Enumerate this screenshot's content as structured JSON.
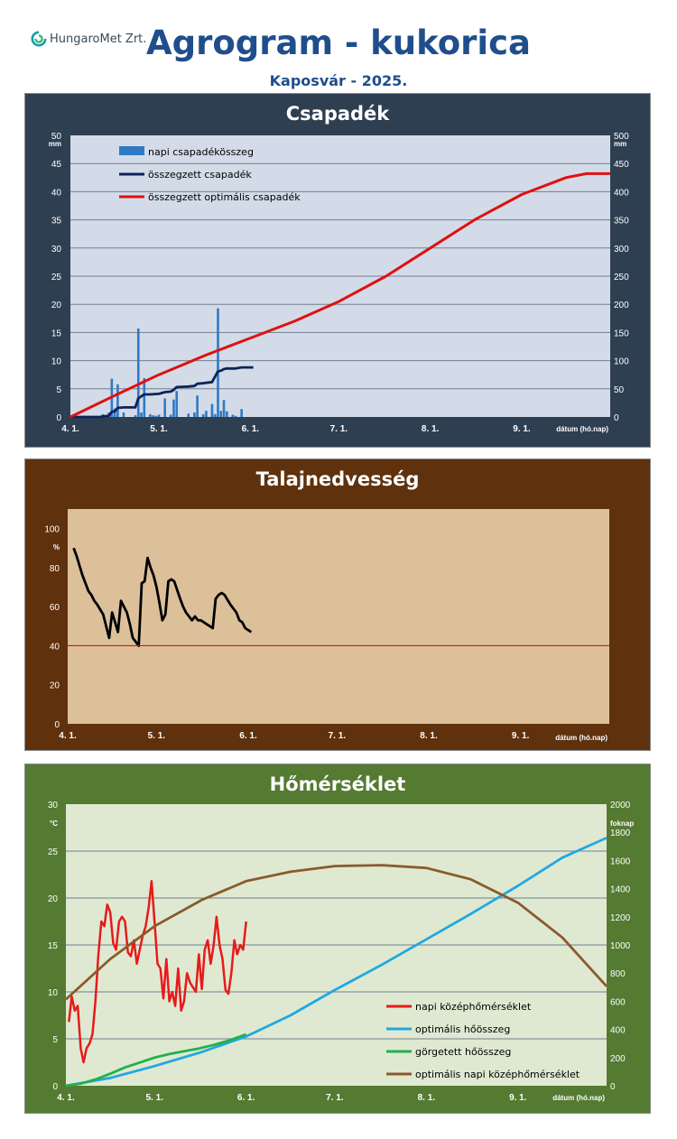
{
  "header": {
    "logo_text": "HungaroMet Zrt.",
    "title": "Agrogram - kukorica",
    "subtitle": "Kaposvár  - 2025."
  },
  "colors": {
    "panel1_bg": "#2f3f52",
    "panel2_bg": "#5f310d",
    "panel3_bg": "#557a32",
    "plot1_bg": "#d3dbe8",
    "plot2_bg": "#dcc09a",
    "plot3_bg": "#dfe9d2",
    "daily_precip": "#2e7ac6",
    "cum_precip": "#0d2357",
    "opt_precip": "#e01010",
    "soil": "#000000",
    "soil_threshold": "#e01010",
    "temp_daily": "#e81a1a",
    "opt_heatsum": "#22a8e0",
    "rolling_heatsum": "#22b04a",
    "opt_daily_temp": "#8b5a2b"
  },
  "chart_data": [
    {
      "type": "bar",
      "title": "Csapadék",
      "xlabel": "dátum (hó.nap)",
      "x_ticks": [
        "4. 1.",
        "5. 1.",
        "6. 1.",
        "7. 1.",
        "8. 1.",
        "9. 1."
      ],
      "x_tick_days": [
        0,
        30,
        61,
        91,
        122,
        153
      ],
      "xlim": [
        0,
        183
      ],
      "y_left": {
        "unit": "mm",
        "lim": [
          0,
          50
        ],
        "ticks": [
          0,
          5,
          10,
          15,
          20,
          25,
          30,
          35,
          40,
          45,
          50
        ]
      },
      "y_right": {
        "unit": "mm",
        "lim": [
          0,
          500
        ],
        "ticks": [
          0,
          50,
          100,
          150,
          200,
          250,
          300,
          350,
          400,
          450,
          500
        ]
      },
      "grid": true,
      "legend": "top-left",
      "series": [
        {
          "name": "napi csapadékösszeg",
          "kind": "bar",
          "axis": "left",
          "x": [
            11,
            13,
            14,
            15,
            16,
            18,
            22,
            23,
            24,
            25,
            27,
            28,
            29,
            30,
            32,
            34,
            35,
            36,
            40,
            42,
            43,
            45,
            46,
            48,
            49,
            50,
            51,
            52,
            53,
            55,
            56,
            58
          ],
          "values": [
            0.5,
            0.8,
            6.8,
            1.5,
            5.8,
            0.8,
            0.3,
            15.7,
            0.8,
            6.9,
            0.5,
            0.3,
            0.2,
            0.4,
            3.3,
            0.4,
            3.1,
            4.6,
            0.6,
            0.8,
            3.8,
            0.5,
            1.1,
            2.3,
            0.5,
            19.3,
            1.1,
            3.0,
            1.0,
            0.4,
            0.2,
            1.4
          ]
        },
        {
          "name": "összegzett csapadék",
          "kind": "line",
          "axis": "right",
          "x": [
            0,
            10,
            11,
            13,
            14,
            15,
            16,
            18,
            22,
            23,
            25,
            27,
            30,
            32,
            34,
            35,
            36,
            40,
            42,
            43,
            45,
            48,
            50,
            51,
            52,
            53,
            56,
            58,
            62
          ],
          "values": [
            0,
            0,
            1,
            2,
            9,
            10,
            16,
            17,
            17,
            33,
            40,
            40,
            41,
            44,
            45,
            48,
            53,
            54,
            55,
            59,
            60,
            62,
            81,
            82,
            85,
            86,
            86,
            88,
            88
          ]
        },
        {
          "name": "összegzett optimális csapadék",
          "kind": "line",
          "axis": "right",
          "x": [
            0,
            15,
            30,
            46,
            61,
            76,
            91,
            107,
            122,
            137,
            153,
            168,
            175,
            183
          ],
          "values": [
            0,
            38,
            75,
            110,
            140,
            170,
            205,
            250,
            300,
            350,
            395,
            425,
            432,
            432
          ]
        }
      ]
    },
    {
      "type": "line",
      "title": "Talajnedvesség",
      "xlabel": "dátum (hó.nap)",
      "x_ticks": [
        "4. 1.",
        "5. 1.",
        "6. 1.",
        "7. 1.",
        "8. 1.",
        "9. 1."
      ],
      "x_tick_days": [
        0,
        30,
        61,
        91,
        122,
        153
      ],
      "xlim": [
        0,
        183
      ],
      "y_left": {
        "unit": "%",
        "lim": [
          0,
          110
        ],
        "ticks": [
          0,
          20,
          40,
          60,
          80,
          100
        ]
      },
      "grid": false,
      "series": [
        {
          "name": "",
          "kind": "line",
          "x": [
            2,
            3,
            5,
            7,
            8,
            9,
            10,
            12,
            13,
            14,
            15,
            16,
            17,
            18,
            20,
            21,
            22,
            23,
            24,
            25,
            26,
            27,
            28,
            29,
            30,
            31,
            32,
            33,
            34,
            35,
            36,
            38,
            39,
            40,
            42,
            43,
            44,
            45,
            46,
            47,
            48,
            49,
            50,
            51,
            52,
            53,
            55,
            56,
            57,
            58,
            59,
            60,
            62
          ],
          "values": [
            90,
            86,
            76,
            68,
            66,
            63,
            61,
            56,
            50,
            44,
            57,
            52,
            47,
            63,
            57,
            51,
            44,
            42,
            40,
            72,
            73,
            85,
            80,
            76,
            70,
            62,
            53,
            56,
            73,
            74,
            73,
            64,
            60,
            57,
            53,
            55,
            53,
            53,
            52,
            51,
            50,
            49,
            64,
            66,
            67,
            66,
            61,
            59,
            57,
            53,
            52,
            49,
            47
          ]
        },
        {
          "name": "",
          "kind": "hline",
          "values": [
            40
          ]
        }
      ]
    },
    {
      "type": "line",
      "title": "Hőmérséklet",
      "xlabel": "dátum (hó.nap)",
      "x_ticks": [
        "4. 1.",
        "5. 1.",
        "6. 1.",
        "7. 1.",
        "8. 1.",
        "9. 1."
      ],
      "x_tick_days": [
        0,
        30,
        61,
        91,
        122,
        153
      ],
      "xlim": [
        0,
        183
      ],
      "y_left": {
        "unit": "°C",
        "lim": [
          0,
          30
        ],
        "ticks": [
          0,
          5,
          10,
          15,
          20,
          25,
          30
        ]
      },
      "y_right": {
        "unit": "foknap",
        "lim": [
          0,
          2000
        ],
        "ticks": [
          0,
          200,
          400,
          600,
          800,
          1000,
          1200,
          1400,
          1600,
          1800,
          2000
        ]
      },
      "grid": true,
      "legend": "bottom-right",
      "series": [
        {
          "name": "napi középhőmérséklet",
          "kind": "line",
          "axis": "left",
          "x": [
            1,
            2,
            3,
            4,
            5,
            6,
            7,
            8,
            9,
            10,
            11,
            12,
            13,
            14,
            15,
            16,
            17,
            18,
            19,
            20,
            21,
            22,
            23,
            24,
            25,
            26,
            27,
            28,
            29,
            30,
            31,
            32,
            33,
            34,
            35,
            36,
            37,
            38,
            39,
            40,
            41,
            42,
            43,
            44,
            45,
            46,
            47,
            48,
            49,
            50,
            51,
            52,
            53,
            54,
            55,
            56,
            57,
            58,
            59,
            60,
            61
          ],
          "values": [
            6.8,
            9.5,
            8.0,
            8.5,
            4.0,
            2.5,
            4.0,
            4.5,
            5.5,
            9.0,
            14.0,
            17.5,
            17.0,
            19.3,
            18.5,
            15.2,
            14.5,
            17.5,
            18.0,
            17.5,
            14.2,
            13.8,
            15.5,
            13.0,
            14.5,
            16.0,
            17.0,
            19.0,
            21.8,
            17.5,
            13.0,
            12.5,
            9.3,
            13.5,
            9.0,
            10.0,
            8.5,
            12.5,
            8.0,
            9.0,
            12.0,
            11.0,
            10.5,
            10.0,
            14.0,
            10.3,
            14.5,
            15.5,
            13.0,
            15.0,
            18.0,
            15.0,
            13.5,
            10.2,
            9.8,
            12.0,
            15.5,
            14.0,
            15.0,
            14.5,
            17.5
          ]
        },
        {
          "name": "optimális hőösszeg",
          "kind": "line",
          "axis": "right",
          "x": [
            0,
            15,
            30,
            46,
            61,
            76,
            91,
            107,
            122,
            137,
            153,
            168,
            183
          ],
          "values": [
            0,
            55,
            140,
            240,
            350,
            500,
            680,
            860,
            1040,
            1220,
            1420,
            1620,
            1760
          ]
        },
        {
          "name": "görgetett hőösszeg",
          "kind": "line",
          "axis": "right",
          "x": [
            0,
            5,
            10,
            15,
            20,
            25,
            30,
            35,
            40,
            45,
            50,
            55,
            61
          ],
          "values": [
            0,
            15,
            45,
            85,
            130,
            165,
            200,
            225,
            245,
            265,
            290,
            320,
            365
          ]
        },
        {
          "name": "optimális napi középhőmérséklet",
          "kind": "line",
          "axis": "left",
          "x": [
            0,
            15,
            30,
            46,
            61,
            76,
            91,
            107,
            122,
            137,
            153,
            168,
            183
          ],
          "values": [
            9.2,
            13.5,
            17.0,
            19.8,
            21.8,
            22.8,
            23.4,
            23.5,
            23.2,
            22.0,
            19.5,
            15.8,
            10.6
          ]
        }
      ]
    }
  ]
}
